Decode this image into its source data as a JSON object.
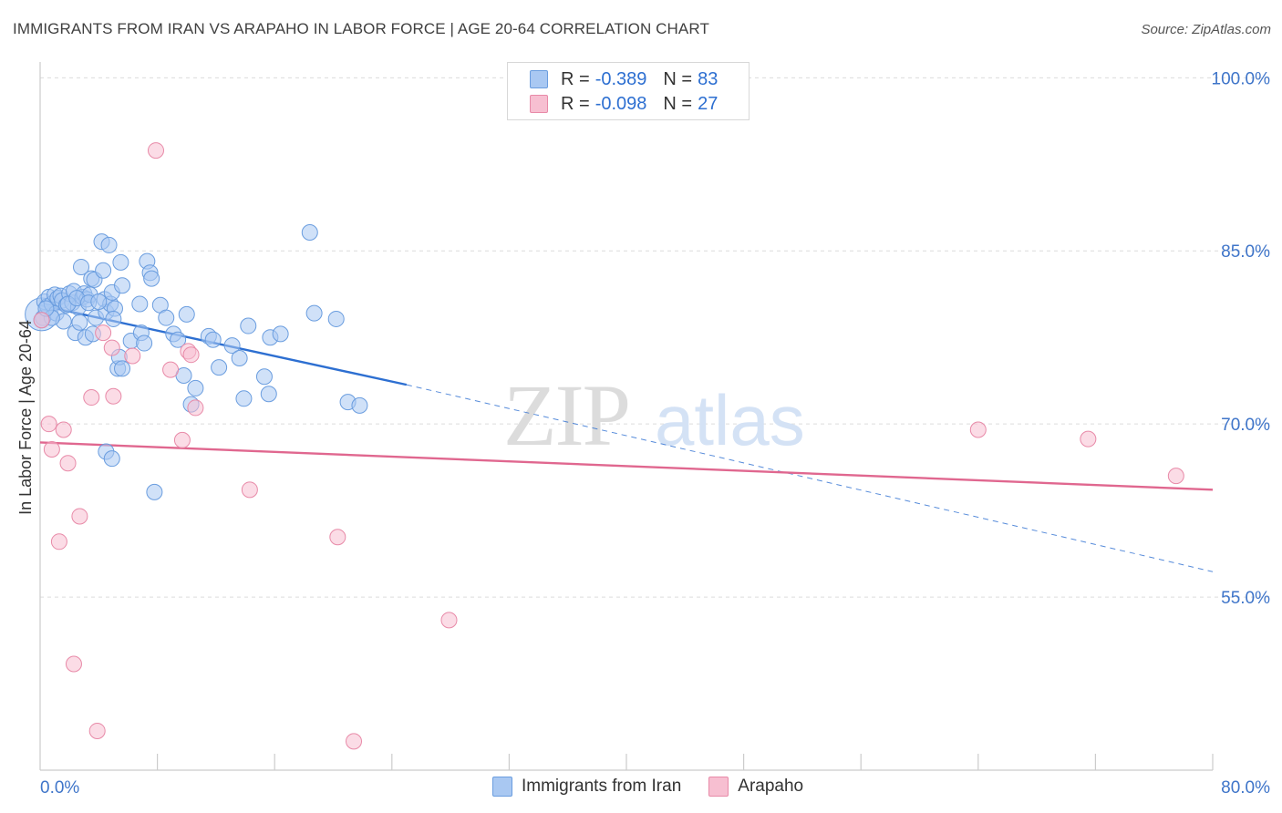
{
  "header": {
    "title": "IMMIGRANTS FROM IRAN VS ARAPAHO IN LABOR FORCE | AGE 20-64 CORRELATION CHART",
    "source": "Source: ZipAtlas.com"
  },
  "legend": {
    "series": [
      {
        "r_label": "R =",
        "r_value": "-0.389",
        "n_label": "N =",
        "n_value": "83",
        "color": "#a9c8f2"
      },
      {
        "r_label": "R =",
        "r_value": "-0.098",
        "n_label": "N =",
        "n_value": "27",
        "color": "#f7bfd1"
      }
    ]
  },
  "bottom_legend": {
    "items": [
      {
        "label": "Immigrants from Iran",
        "color": "#a9c8f2"
      },
      {
        "label": "Arapaho",
        "color": "#f7bfd1"
      }
    ]
  },
  "watermark": {
    "zip": "ZIP",
    "atlas": "atlas"
  },
  "chart_data": {
    "type": "scatter",
    "title": "IMMIGRANTS FROM IRAN VS ARAPAHO IN LABOR FORCE | AGE 20-64 CORRELATION CHART",
    "xlabel": "",
    "ylabel": "In Labor Force | Age 20-64",
    "xlim": [
      0,
      80
    ],
    "ylim": [
      40,
      102
    ],
    "x_tick_labels": [
      {
        "value": 0,
        "label": "0.0%"
      },
      {
        "value": 80,
        "label": "80.0%"
      }
    ],
    "y_tick_labels": [
      {
        "value": 100,
        "label": "100.0%"
      },
      {
        "value": 85,
        "label": "85.0%"
      },
      {
        "value": 70,
        "label": "70.0%"
      },
      {
        "value": 55,
        "label": "55.0%"
      }
    ],
    "y_grid": [
      100,
      85,
      70,
      55
    ],
    "x_minor_ticks": [
      8,
      16,
      24,
      32,
      40,
      48,
      56,
      64,
      72,
      80
    ],
    "series": [
      {
        "name": "Immigrants from Iran",
        "color": "#a9c8f2",
        "stroke": "#6a9ddf",
        "trend": {
          "x0": 0,
          "y0": 80.3,
          "x1": 25,
          "y1": 73.4,
          "dash_to_x": 80,
          "dash_to_y": 57.2,
          "color": "#2d6fd1"
        },
        "points": [
          [
            0.2,
            79.2
          ],
          [
            0.3,
            80.6
          ],
          [
            0.5,
            80.2
          ],
          [
            0.6,
            81.0
          ],
          [
            0.8,
            80.4
          ],
          [
            1.0,
            81.2
          ],
          [
            1.1,
            79.6
          ],
          [
            1.2,
            80.9
          ],
          [
            1.4,
            81.1
          ],
          [
            1.5,
            80.7
          ],
          [
            1.6,
            78.9
          ],
          [
            1.8,
            80.3
          ],
          [
            2.0,
            81.3
          ],
          [
            2.2,
            80.5
          ],
          [
            2.3,
            81.5
          ],
          [
            2.4,
            77.9
          ],
          [
            2.6,
            80.1
          ],
          [
            2.7,
            78.8
          ],
          [
            2.8,
            83.6
          ],
          [
            2.9,
            81.0
          ],
          [
            3.0,
            81.3
          ],
          [
            3.1,
            77.5
          ],
          [
            3.2,
            80.8
          ],
          [
            3.4,
            81.2
          ],
          [
            3.5,
            82.6
          ],
          [
            3.6,
            77.8
          ],
          [
            3.7,
            82.5
          ],
          [
            3.8,
            79.2
          ],
          [
            4.2,
            85.8
          ],
          [
            4.3,
            83.3
          ],
          [
            4.4,
            80.8
          ],
          [
            4.5,
            79.7
          ],
          [
            4.7,
            85.5
          ],
          [
            4.8,
            80.4
          ],
          [
            4.9,
            81.4
          ],
          [
            5.1,
            80.0
          ],
          [
            5.0,
            79.1
          ],
          [
            5.3,
            74.8
          ],
          [
            5.4,
            75.8
          ],
          [
            5.5,
            84.0
          ],
          [
            5.6,
            82.0
          ],
          [
            5.6,
            74.8
          ],
          [
            6.2,
            77.2
          ],
          [
            6.8,
            80.4
          ],
          [
            6.9,
            77.9
          ],
          [
            7.1,
            77.0
          ],
          [
            7.3,
            84.1
          ],
          [
            7.5,
            83.1
          ],
          [
            7.6,
            82.6
          ],
          [
            8.2,
            80.3
          ],
          [
            8.6,
            79.2
          ],
          [
            9.1,
            77.8
          ],
          [
            9.4,
            77.3
          ],
          [
            9.8,
            74.2
          ],
          [
            10.0,
            79.5
          ],
          [
            10.3,
            71.7
          ],
          [
            10.6,
            73.1
          ],
          [
            11.5,
            77.6
          ],
          [
            11.8,
            77.3
          ],
          [
            12.2,
            74.9
          ],
          [
            13.1,
            76.8
          ],
          [
            13.6,
            75.7
          ],
          [
            13.9,
            72.2
          ],
          [
            14.2,
            78.5
          ],
          [
            15.3,
            74.1
          ],
          [
            15.6,
            72.6
          ],
          [
            15.7,
            77.5
          ],
          [
            16.4,
            77.8
          ],
          [
            18.4,
            86.6
          ],
          [
            18.7,
            79.6
          ],
          [
            20.2,
            79.1
          ],
          [
            21.0,
            71.9
          ],
          [
            21.8,
            71.6
          ],
          [
            4.5,
            67.6
          ],
          [
            4.9,
            67.0
          ],
          [
            7.8,
            64.1
          ],
          [
            0.8,
            79.2
          ],
          [
            1.9,
            80.4
          ],
          [
            2.5,
            80.9
          ],
          [
            3.3,
            80.5
          ],
          [
            4.0,
            80.6
          ],
          [
            0.1,
            79.0
          ],
          [
            0.4,
            80.0
          ]
        ]
      },
      {
        "name": "Arapaho",
        "color": "#f7bfd1",
        "stroke": "#e88aa8",
        "trend": {
          "x0": 0,
          "y0": 68.4,
          "x1": 80,
          "y1": 64.3,
          "color": "#e0678f"
        },
        "points": [
          [
            0.1,
            79.0
          ],
          [
            0.6,
            70.0
          ],
          [
            0.8,
            67.8
          ],
          [
            1.3,
            59.8
          ],
          [
            1.6,
            69.5
          ],
          [
            1.9,
            66.6
          ],
          [
            2.3,
            49.2
          ],
          [
            2.7,
            62.0
          ],
          [
            3.5,
            72.3
          ],
          [
            3.9,
            43.4
          ],
          [
            4.3,
            77.9
          ],
          [
            4.9,
            76.6
          ],
          [
            5.0,
            72.4
          ],
          [
            6.3,
            75.9
          ],
          [
            7.9,
            93.7
          ],
          [
            8.9,
            74.7
          ],
          [
            9.7,
            68.6
          ],
          [
            10.1,
            76.3
          ],
          [
            10.3,
            76.0
          ],
          [
            10.6,
            71.4
          ],
          [
            14.3,
            64.3
          ],
          [
            20.3,
            60.2
          ],
          [
            21.4,
            42.5
          ],
          [
            27.9,
            53.0
          ],
          [
            64.0,
            69.5
          ],
          [
            71.5,
            68.7
          ],
          [
            77.5,
            65.5
          ]
        ]
      }
    ]
  }
}
